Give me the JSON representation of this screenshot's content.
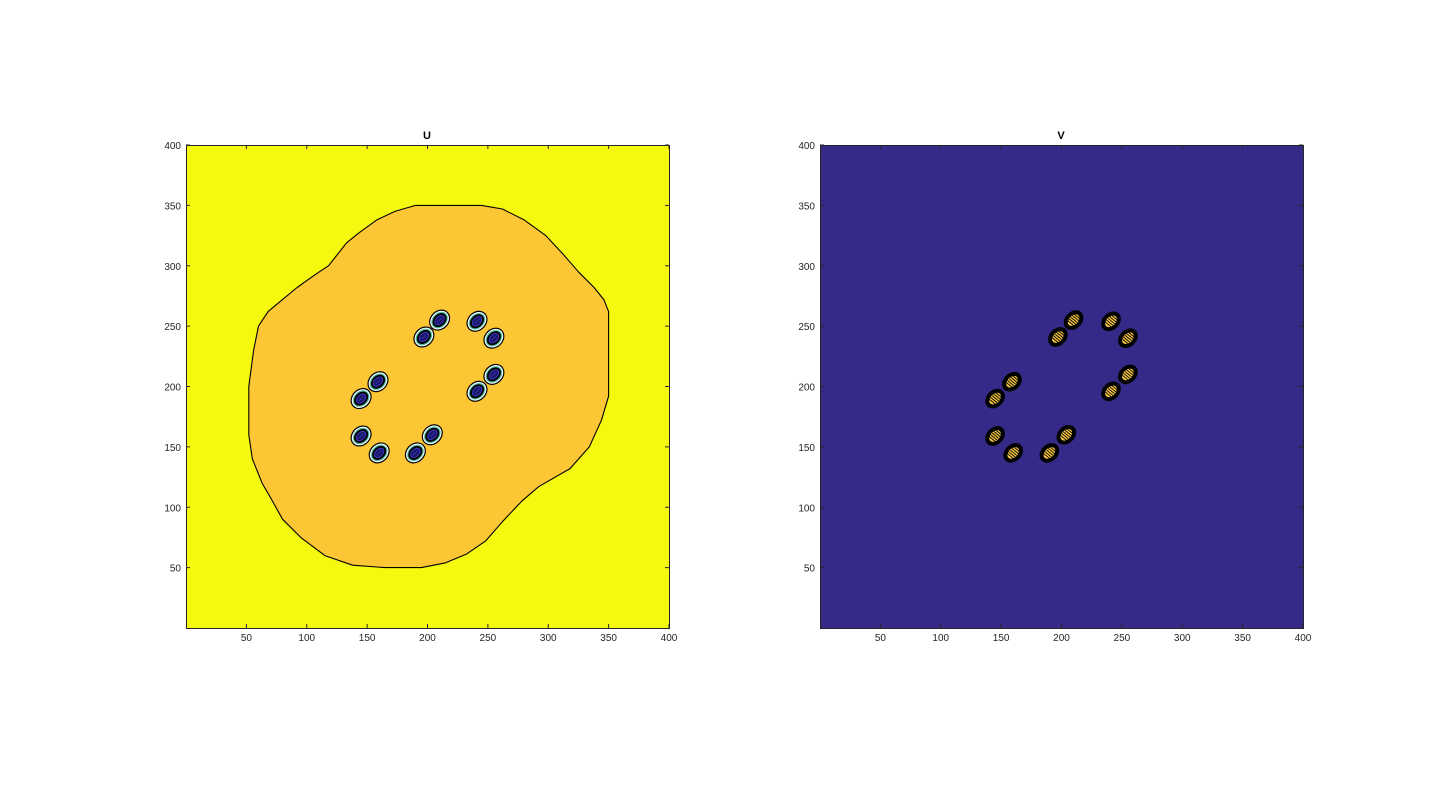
{
  "figure": {
    "background": "#ffffff"
  },
  "chart_data": [
    {
      "type": "heatmap",
      "title": "U",
      "xlabel": "",
      "ylabel": "",
      "xlim": [
        0,
        400
      ],
      "ylim": [
        0,
        400
      ],
      "xticks": [
        50,
        100,
        150,
        200,
        250,
        300,
        350,
        400
      ],
      "yticks": [
        50,
        100,
        150,
        200,
        250,
        300,
        350,
        400
      ],
      "grid": false,
      "background_color": "#f5f90f",
      "region": {
        "color": "#fcc634",
        "outline_color": "#000000",
        "boundary": [
          [
            60,
            250
          ],
          [
            68,
            262
          ],
          [
            75,
            268
          ],
          [
            92,
            282
          ],
          [
            106,
            292
          ],
          [
            112,
            296
          ],
          [
            118,
            300
          ],
          [
            133,
            319
          ],
          [
            143,
            327
          ],
          [
            158,
            338
          ],
          [
            173,
            345
          ],
          [
            190,
            350
          ],
          [
            215,
            350
          ],
          [
            245,
            350
          ],
          [
            262,
            347
          ],
          [
            280,
            338
          ],
          [
            298,
            325
          ],
          [
            312,
            310
          ],
          [
            325,
            295
          ],
          [
            338,
            282
          ],
          [
            346,
            272
          ],
          [
            350,
            262
          ],
          [
            350,
            240
          ],
          [
            350,
            210
          ],
          [
            350,
            192
          ],
          [
            344,
            172
          ],
          [
            334,
            150
          ],
          [
            318,
            132
          ],
          [
            292,
            117
          ],
          [
            278,
            105
          ],
          [
            262,
            88
          ],
          [
            248,
            72
          ],
          [
            232,
            61
          ],
          [
            215,
            54
          ],
          [
            195,
            50
          ],
          [
            165,
            50
          ],
          [
            138,
            52
          ],
          [
            115,
            60
          ],
          [
            95,
            75
          ],
          [
            80,
            90
          ],
          [
            70,
            108
          ],
          [
            63,
            120
          ],
          [
            55,
            140
          ],
          [
            52,
            160
          ],
          [
            52,
            200
          ],
          [
            56,
            230
          ]
        ]
      },
      "spots": [
        {
          "x": 210,
          "y": 255
        },
        {
          "x": 197,
          "y": 241
        },
        {
          "x": 241,
          "y": 254
        },
        {
          "x": 255,
          "y": 240
        },
        {
          "x": 255,
          "y": 210
        },
        {
          "x": 241,
          "y": 196
        },
        {
          "x": 159,
          "y": 204
        },
        {
          "x": 145,
          "y": 190
        },
        {
          "x": 145,
          "y": 159
        },
        {
          "x": 160,
          "y": 145
        },
        {
          "x": 190,
          "y": 145
        },
        {
          "x": 204,
          "y": 160
        }
      ],
      "spot_colors": [
        "#000000",
        "#ffffff",
        "#4fc0a8",
        "#000000",
        "#3d3bd6",
        "#1a1660"
      ]
    },
    {
      "type": "heatmap",
      "title": "V",
      "xlabel": "",
      "ylabel": "",
      "xlim": [
        0,
        400
      ],
      "ylim": [
        0,
        400
      ],
      "xticks": [
        50,
        100,
        150,
        200,
        250,
        300,
        350,
        400
      ],
      "yticks": [
        50,
        100,
        150,
        200,
        250,
        300,
        350,
        400
      ],
      "grid": false,
      "background_color": "#352a87",
      "spots": [
        {
          "x": 210,
          "y": 255
        },
        {
          "x": 197,
          "y": 241
        },
        {
          "x": 241,
          "y": 254
        },
        {
          "x": 255,
          "y": 240
        },
        {
          "x": 255,
          "y": 210
        },
        {
          "x": 241,
          "y": 196
        },
        {
          "x": 159,
          "y": 204
        },
        {
          "x": 145,
          "y": 190
        },
        {
          "x": 145,
          "y": 159
        },
        {
          "x": 160,
          "y": 145
        },
        {
          "x": 190,
          "y": 145
        },
        {
          "x": 204,
          "y": 160
        }
      ],
      "spot_colors": [
        "#000000",
        "#f9c840",
        "#000000"
      ]
    }
  ]
}
